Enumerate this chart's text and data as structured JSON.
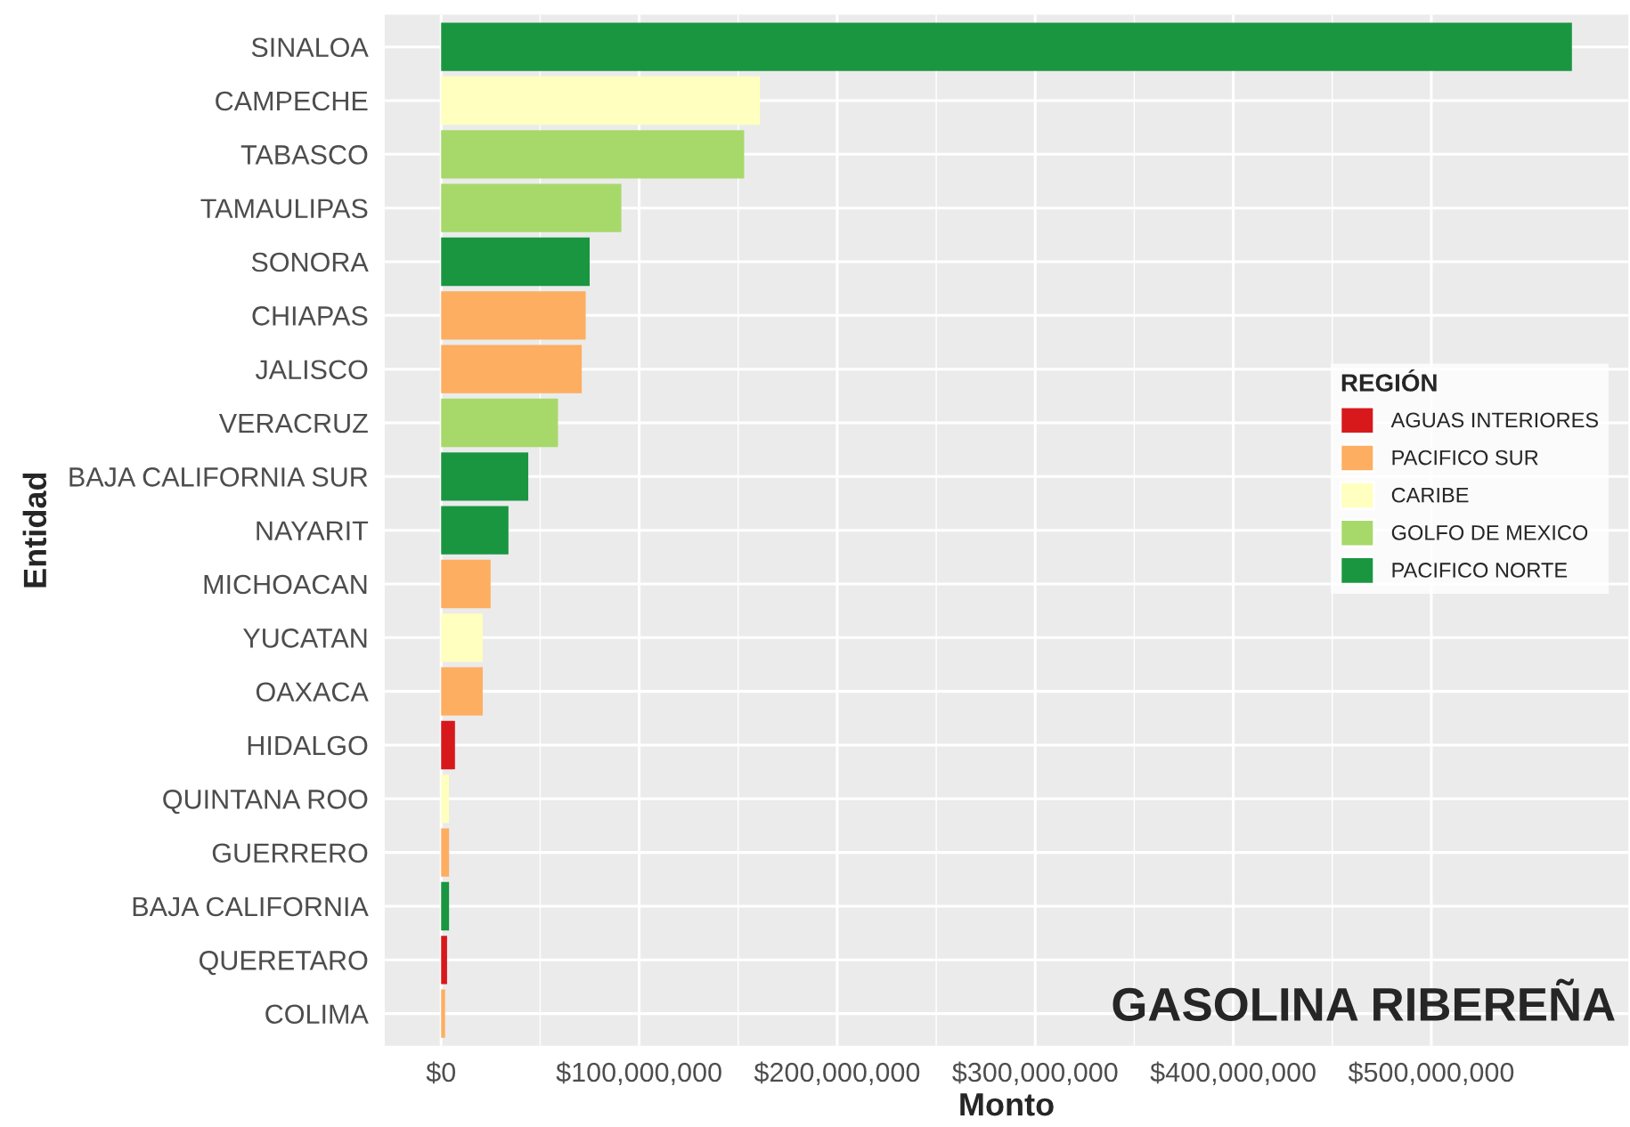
{
  "chart_data": {
    "type": "bar",
    "orientation": "horizontal",
    "xlabel": "Monto",
    "ylabel": "Entidad",
    "legend_title": "REGIÓN",
    "categories": [
      "SINALOA",
      "CAMPECHE",
      "TABASCO",
      "TAMAULIPAS",
      "SONORA",
      "CHIAPAS",
      "JALISCO",
      "VERACRUZ",
      "BAJA CALIFORNIA SUR",
      "NAYARIT",
      "MICHOACAN",
      "YUCATAN",
      "OAXACA",
      "HIDALGO",
      "QUINTANA ROO",
      "GUERRERO",
      "BAJA CALIFORNIA",
      "QUERETARO",
      "COLIMA"
    ],
    "series": [
      {
        "name": "AGUAS INTERIORES",
        "color": "#d7191c",
        "values": [
          null,
          null,
          null,
          null,
          null,
          null,
          null,
          null,
          null,
          null,
          null,
          null,
          null,
          7000000,
          null,
          null,
          null,
          3000000,
          null
        ]
      },
      {
        "name": "PACIFICO SUR",
        "color": "#fdae61",
        "values": [
          null,
          null,
          null,
          null,
          null,
          73000000,
          71000000,
          null,
          null,
          null,
          25000000,
          null,
          21000000,
          null,
          null,
          4000000,
          null,
          null,
          2000000
        ]
      },
      {
        "name": "CARIBE",
        "color": "#ffffbf",
        "values": [
          null,
          161000000,
          null,
          null,
          null,
          null,
          null,
          null,
          null,
          null,
          null,
          21000000,
          null,
          null,
          4000000,
          null,
          null,
          null,
          null
        ]
      },
      {
        "name": "GOLFO DE MEXICO",
        "color": "#a6d96a",
        "values": [
          null,
          null,
          153000000,
          91000000,
          null,
          null,
          null,
          59000000,
          null,
          null,
          null,
          null,
          null,
          null,
          null,
          null,
          null,
          null,
          null
        ]
      },
      {
        "name": "PACIFICO NORTE",
        "color": "#1a9641",
        "values": [
          571000000,
          null,
          null,
          null,
          75000000,
          null,
          null,
          null,
          44000000,
          34000000,
          null,
          null,
          null,
          null,
          null,
          null,
          4000000,
          null,
          null
        ]
      }
    ],
    "xlim": [
      -28500000,
      599500000
    ],
    "xticks": [
      {
        "value": 0,
        "label": "$0"
      },
      {
        "value": 100000000,
        "label": "$100,000,000"
      },
      {
        "value": 200000000,
        "label": "$200,000,000"
      },
      {
        "value": 300000000,
        "label": "$300,000,000"
      },
      {
        "value": 400000000,
        "label": "$400,000,000"
      },
      {
        "value": 500000000,
        "label": "$500,000,000"
      }
    ],
    "grid": true,
    "legend": "right",
    "annotations": [
      {
        "text": "GASOLINA RIBEREÑA"
      }
    ]
  }
}
